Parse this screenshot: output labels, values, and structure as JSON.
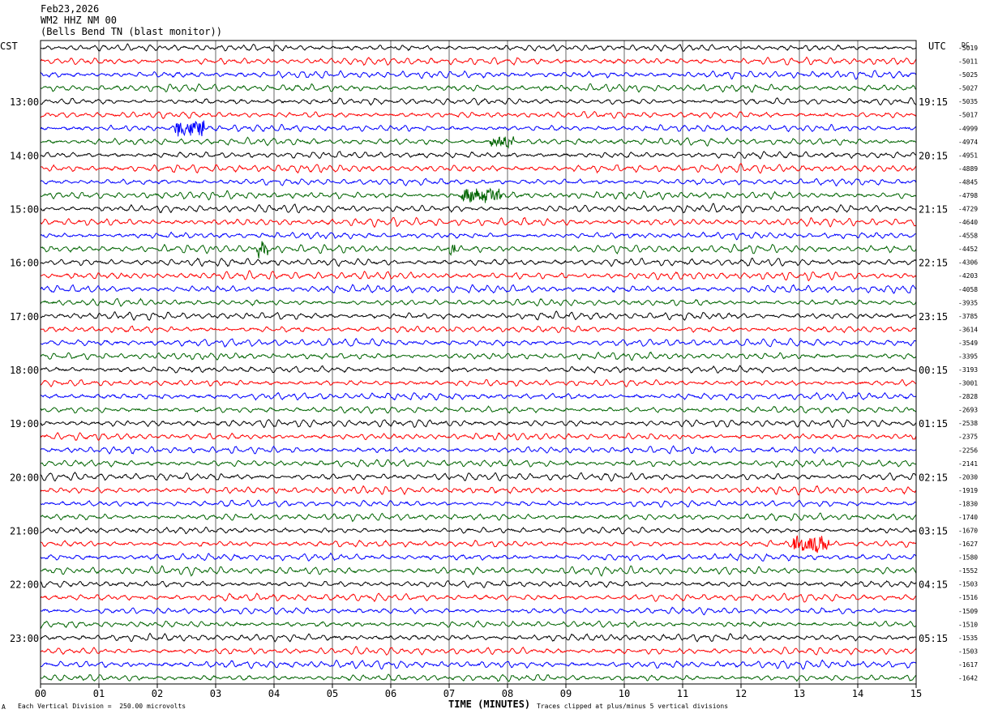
{
  "header": {
    "date": "Feb23,2026",
    "station": "WM2 HHZ NM 00",
    "location": "(Bells Bend TN (blast monitor))"
  },
  "footer": {
    "scale_note": "Each Vertical Division =  250.00 microvolts",
    "clip_note": "Traces clipped at plus/minus 5 vertical divisions",
    "corner_mark": "A"
  },
  "chart_data": {
    "type": "line",
    "title": "",
    "xlabel": "TIME (MINUTES)",
    "ylabel_left": "CST",
    "ylabel_right": "UTC",
    "dc_label": "DC",
    "xlim": [
      0,
      15
    ],
    "x_ticks": [
      "00",
      "01",
      "02",
      "03",
      "04",
      "05",
      "06",
      "07",
      "08",
      "09",
      "10",
      "11",
      "12",
      "13",
      "14",
      "15"
    ],
    "trace_colors": [
      "#000000",
      "#ff0000",
      "#0000ff",
      "#006400"
    ],
    "traces_per_hour": 4,
    "left_hour_labels": [
      "13:00",
      "14:00",
      "15:00",
      "16:00",
      "17:00",
      "18:00",
      "19:00",
      "20:00",
      "21:00",
      "22:00",
      "23:00"
    ],
    "right_hour_labels": [
      "19:15",
      "20:15",
      "21:15",
      "22:15",
      "23:15",
      "00:15",
      "01:15",
      "02:15",
      "03:15",
      "04:15",
      "05:15"
    ],
    "dc_offsets": [
      -5019,
      -5011,
      -5025,
      -5027,
      -5035,
      -5017,
      -4999,
      -4974,
      -4951,
      -4889,
      -4845,
      -4798,
      -4729,
      -4640,
      -4558,
      -4452,
      -4306,
      -4203,
      -4058,
      -3935,
      -3785,
      -3614,
      -3549,
      -3395,
      -3193,
      -3001,
      -2828,
      -2693,
      -2538,
      -2375,
      -2256,
      -2141,
      -2030,
      -1919,
      -1830,
      -1740,
      -1670,
      -1627,
      -1580,
      -1552,
      -1503,
      -1516,
      -1509,
      -1510,
      -1535,
      -1503,
      -1617,
      -1642
    ],
    "grid": true
  }
}
